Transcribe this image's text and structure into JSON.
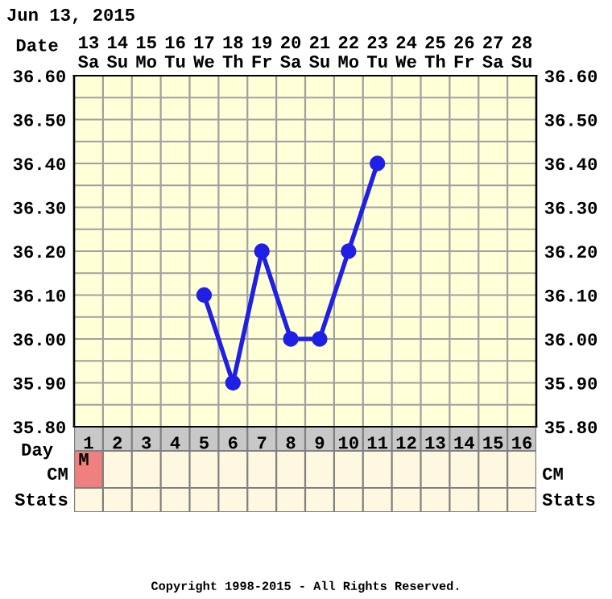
{
  "chart_data": {
    "type": "line",
    "title": "Jun 13, 2015",
    "categories": [
      "13\nSa",
      "14\nSu",
      "15\nMo",
      "16\nTu",
      "17\nWe",
      "18\nTh",
      "19\nFr",
      "20\nSa",
      "21\nSu",
      "22\nMo",
      "23\nTu",
      "24\nWe",
      "25\nTh",
      "26\nFr",
      "27\nSa",
      "28\nSu"
    ],
    "series": [
      {
        "color": "#1f1fe6",
        "values": [
          null,
          null,
          null,
          null,
          36.1,
          35.9,
          36.2,
          36.0,
          36.0,
          36.2,
          36.4,
          null,
          null,
          null,
          null,
          null
        ]
      }
    ],
    "xlabel": "Date",
    "x2lim": [
      0.5,
      16.5
    ],
    "x2ticks": [
      1,
      2,
      3,
      4,
      5,
      6,
      7,
      8,
      9,
      10,
      11,
      12,
      13,
      14,
      15,
      16
    ],
    "x2label": "Day",
    "ylim": [
      35.8,
      36.6
    ],
    "yticks": [
      {
        "value": 35.8,
        "label": "35.80"
      },
      {
        "value": 35.85,
        "label": null
      },
      {
        "value": 35.9,
        "label": "35.90"
      },
      {
        "value": 35.95,
        "label": null
      },
      {
        "value": 36.0,
        "label": "36.00"
      },
      {
        "value": 36.05,
        "label": null
      },
      {
        "value": 36.1,
        "label": "36.10"
      },
      {
        "value": 36.15,
        "label": null
      },
      {
        "value": 36.2,
        "label": "36.20"
      },
      {
        "value": 36.25,
        "label": null
      },
      {
        "value": 36.3,
        "label": "36.30"
      },
      {
        "value": 36.35,
        "label": null
      },
      {
        "value": 36.4,
        "label": "36.40"
      },
      {
        "value": 36.45,
        "label": null
      },
      {
        "value": 36.5,
        "label": "36.50"
      },
      {
        "value": 36.55,
        "label": null
      },
      {
        "value": 36.6,
        "label": "36.60"
      }
    ],
    "y2lim": [
      35.8,
      36.6
    ],
    "y2ticks": [
      {
        "value": 35.8,
        "label": "35.80"
      },
      {
        "value": 35.85,
        "label": null
      },
      {
        "value": 35.9,
        "label": "35.90"
      },
      {
        "value": 35.95,
        "label": null
      },
      {
        "value": 36.0,
        "label": "36.00"
      },
      {
        "value": 36.05,
        "label": null
      },
      {
        "value": 36.1,
        "label": "36.10"
      },
      {
        "value": 36.15,
        "label": null
      },
      {
        "value": 36.2,
        "label": "36.20"
      },
      {
        "value": 36.25,
        "label": null
      },
      {
        "value": 36.3,
        "label": "36.30"
      },
      {
        "value": 36.35,
        "label": null
      },
      {
        "value": 36.4,
        "label": "36.40"
      },
      {
        "value": 36.45,
        "label": null
      },
      {
        "value": 36.5,
        "label": "36.50"
      },
      {
        "value": 36.55,
        "label": null
      },
      {
        "value": 36.6,
        "label": "36.60"
      }
    ],
    "annotations": [
      "CM",
      "Stats",
      "M",
      "Copyright 1998-2015 - All Rights Reserved."
    ],
    "grid": true,
    "marker": "circle",
    "line_style": "solid"
  }
}
